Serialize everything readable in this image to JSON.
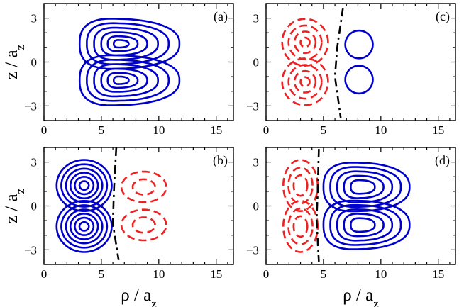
{
  "chart_data": [
    {
      "type": "contour",
      "panel_label": "(a)",
      "xlabel": "",
      "ylabel": "z / a_z",
      "ylabel_main": "z / a",
      "ylabel_sub": "z",
      "xlim": [
        0,
        16.5
      ],
      "ylim": [
        -4,
        4
      ],
      "xticks": [
        "0",
        "5",
        "10",
        "15"
      ],
      "yticks": [
        "3",
        "0",
        "-3"
      ],
      "lobes": [
        {
          "sign": "positive",
          "color": "#0000cc",
          "shape": "trap",
          "cx": 6.6,
          "cy": 1.25,
          "rl": 3.5,
          "rr": 5.2,
          "ry_in": 1.9,
          "ry_out": 1.5,
          "levels": [
            1.0,
            0.82,
            0.64,
            0.46,
            0.3,
            0.15
          ],
          "neck": 0.4
        },
        {
          "sign": "positive",
          "color": "#0000cc",
          "shape": "trap",
          "cx": 6.6,
          "cy": -1.25,
          "rl": 3.5,
          "rr": 5.2,
          "ry_in": 1.9,
          "ry_out": 1.5,
          "levels": [
            1.0,
            0.82,
            0.64,
            0.46,
            0.3,
            0.15
          ],
          "neck": 0.4
        }
      ]
    },
    {
      "type": "contour",
      "panel_label": "(c)",
      "xlabel": "",
      "ylabel": "",
      "xlim": [
        0,
        16.5
      ],
      "ylim": [
        -4,
        4
      ],
      "xticks": [
        "0",
        "5",
        "10",
        "15"
      ],
      "yticks": [
        "3",
        "0",
        "-3"
      ],
      "nodal_line": [
        [
          6.7,
          3.7
        ],
        [
          6.2,
          1.0
        ],
        [
          6.0,
          -1.0
        ],
        [
          6.5,
          -3.8
        ]
      ],
      "lobes": [
        {
          "sign": "negative",
          "color": "#ee2222",
          "shape": "ellipse",
          "cx": 3.4,
          "cy": 1.35,
          "rx": 2.0,
          "ry": 1.6,
          "levels": [
            1.0,
            0.72,
            0.46,
            0.2
          ]
        },
        {
          "sign": "negative",
          "color": "#ee2222",
          "shape": "ellipse",
          "cx": 3.4,
          "cy": -1.35,
          "rx": 2.0,
          "ry": 1.6,
          "levels": [
            1.0,
            0.72,
            0.46,
            0.2
          ]
        },
        {
          "sign": "positive",
          "color": "#0000cc",
          "shape": "ellipse",
          "cx": 8.1,
          "cy": 1.2,
          "rx": 1.2,
          "ry": 0.95,
          "levels": [
            1.0
          ]
        },
        {
          "sign": "positive",
          "color": "#0000cc",
          "shape": "ellipse",
          "cx": 8.1,
          "cy": -1.2,
          "rx": 1.2,
          "ry": 0.95,
          "levels": [
            1.0
          ]
        }
      ]
    },
    {
      "type": "contour",
      "panel_label": "(b)",
      "xlabel": "ρ / a_z",
      "xlabel_main": "ρ / a",
      "xlabel_sub": "z",
      "ylabel": "z / a_z",
      "ylabel_main": "z / a",
      "ylabel_sub": "z",
      "xlim": [
        0,
        16.5
      ],
      "ylim": [
        -4,
        4
      ],
      "xticks": [
        "0",
        "5",
        "10",
        "15"
      ],
      "yticks": [
        "3",
        "0",
        "-3"
      ],
      "nodal_line": [
        [
          6.3,
          4.0
        ],
        [
          6.1,
          1.2
        ],
        [
          6.0,
          -1.2
        ],
        [
          6.5,
          -3.7
        ]
      ],
      "lobes": [
        {
          "sign": "positive",
          "color": "#0000cc",
          "shape": "ellipse",
          "cx": 3.5,
          "cy": 1.4,
          "rx": 2.4,
          "ry": 1.75,
          "levels": [
            1.0,
            0.83,
            0.66,
            0.5,
            0.34,
            0.17
          ],
          "neck": 0.35
        },
        {
          "sign": "positive",
          "color": "#0000cc",
          "shape": "ellipse",
          "cx": 3.5,
          "cy": -1.4,
          "rx": 2.4,
          "ry": 1.75,
          "levels": [
            1.0,
            0.83,
            0.66,
            0.5,
            0.34,
            0.17
          ],
          "neck": 0.35
        },
        {
          "sign": "negative",
          "color": "#ee2222",
          "shape": "ellipse",
          "cx": 8.7,
          "cy": 1.3,
          "rx": 1.95,
          "ry": 1.05,
          "levels": [
            1.0,
            0.5
          ]
        },
        {
          "sign": "negative",
          "color": "#ee2222",
          "shape": "ellipse",
          "cx": 8.7,
          "cy": -1.3,
          "rx": 1.95,
          "ry": 1.05,
          "levels": [
            1.0,
            0.5
          ]
        }
      ]
    },
    {
      "type": "contour",
      "panel_label": "(d)",
      "xlabel": "ρ / a_z",
      "xlabel_main": "ρ / a",
      "xlabel_sub": "z",
      "ylabel": "",
      "xlim": [
        0,
        16.5
      ],
      "ylim": [
        -4,
        4
      ],
      "xticks": [
        "0",
        "5",
        "10",
        "15"
      ],
      "yticks": [
        "3",
        "0",
        "-3"
      ],
      "nodal_line": [
        [
          4.6,
          3.9
        ],
        [
          4.5,
          1.0
        ],
        [
          4.4,
          -1.0
        ],
        [
          4.6,
          -3.8
        ]
      ],
      "lobes": [
        {
          "sign": "negative",
          "color": "#ee2222",
          "shape": "ellipse",
          "cx": 3.0,
          "cy": 1.4,
          "rx": 1.5,
          "ry": 1.75,
          "levels": [
            1.0,
            0.7,
            0.4
          ]
        },
        {
          "sign": "negative",
          "color": "#ee2222",
          "shape": "ellipse",
          "cx": 3.0,
          "cy": -1.4,
          "rx": 1.5,
          "ry": 1.75,
          "levels": [
            1.0,
            0.7,
            0.4
          ]
        },
        {
          "sign": "positive",
          "color": "#0000cc",
          "shape": "trap",
          "cx": 8.3,
          "cy": 1.3,
          "rl": 3.3,
          "rr": 4.2,
          "ry_in": 1.85,
          "ry_out": 1.45,
          "levels": [
            1.0,
            0.82,
            0.64,
            0.46,
            0.28
          ],
          "neck": 0.35
        },
        {
          "sign": "positive",
          "color": "#0000cc",
          "shape": "trap",
          "cx": 8.3,
          "cy": -1.3,
          "rl": 3.3,
          "rr": 4.2,
          "ry_in": 1.85,
          "ry_out": 1.45,
          "levels": [
            1.0,
            0.82,
            0.64,
            0.46,
            0.28
          ],
          "neck": 0.35
        }
      ]
    }
  ]
}
